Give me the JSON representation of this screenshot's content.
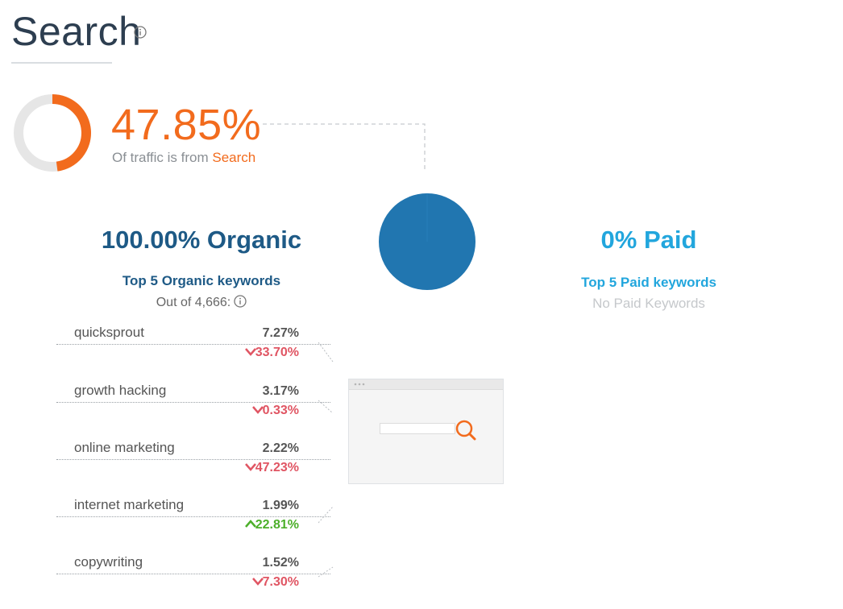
{
  "title": "Search",
  "share": {
    "percent": "47.85%",
    "percent_value": 47.85,
    "subtitle_prefix": "Of traffic is from ",
    "subtitle_accent": "Search"
  },
  "organic": {
    "heading": "100.00% Organic",
    "share_value": 100.0,
    "keywords_title": "Top 5 Organic keywords",
    "count_text": "Out of 4,666:",
    "keywords": [
      {
        "name": "quicksprout",
        "share": "7.27%",
        "change": "33.70%",
        "trend": "down"
      },
      {
        "name": "growth hacking",
        "share": "3.17%",
        "change": "0.33%",
        "trend": "down"
      },
      {
        "name": "online marketing",
        "share": "2.22%",
        "change": "47.23%",
        "trend": "down"
      },
      {
        "name": "internet marketing",
        "share": "1.99%",
        "change": "22.81%",
        "trend": "up"
      },
      {
        "name": "copywriting",
        "share": "1.52%",
        "change": "7.30%",
        "trend": "down"
      }
    ]
  },
  "paid": {
    "heading": "0% Paid",
    "keywords_title": "Top 5 Paid keywords",
    "empty_text": "No Paid Keywords"
  },
  "colors": {
    "orange": "#f26b1d",
    "organic_blue": "#1e5a86",
    "paid_blue": "#22a6dd",
    "pie_blue": "#2176b0",
    "down_red": "#e05563",
    "up_green": "#4caf2a"
  },
  "icons": {
    "title_info": "info-icon",
    "count_info": "info-icon",
    "browser_search": "magnifier-icon"
  }
}
